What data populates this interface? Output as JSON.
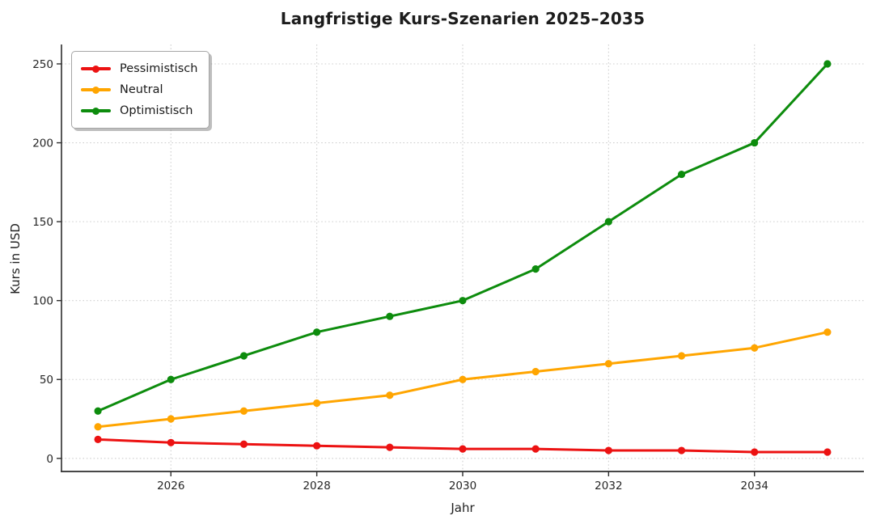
{
  "chart_data": {
    "type": "line",
    "title": "Langfristige Kurs-Szenarien 2025–2035",
    "xlabel": "Jahr",
    "ylabel": "Kurs in USD",
    "x": [
      2025,
      2026,
      2027,
      2028,
      2029,
      2030,
      2031,
      2032,
      2033,
      2034,
      2035
    ],
    "series": [
      {
        "name": "Pessimistisch",
        "color": "#ec1212",
        "values": [
          12,
          10,
          9,
          8,
          7,
          6,
          6,
          5,
          5,
          4,
          4
        ]
      },
      {
        "name": "Neutral",
        "color": "#ffa500",
        "values": [
          20,
          25,
          30,
          35,
          40,
          50,
          55,
          60,
          65,
          70,
          80
        ]
      },
      {
        "name": "Optimistisch",
        "color": "#0d8c0d",
        "values": [
          30,
          50,
          65,
          80,
          90,
          100,
          120,
          150,
          180,
          200,
          250
        ]
      }
    ],
    "xticks": [
      2026,
      2028,
      2030,
      2032,
      2034
    ],
    "yticks": [
      0,
      50,
      100,
      150,
      200,
      250
    ],
    "xlim": [
      2024.5,
      2035.5
    ],
    "ylim": [
      -8.3,
      262.3
    ],
    "grid": true,
    "grid_style": "dotted",
    "legend_position": "upper left",
    "legend_entries": [
      "Pessimistisch",
      "Neutral",
      "Optimistisch"
    ],
    "marker": "circle",
    "colors": {
      "pessimistic": "#ec1212",
      "neutral": "#ffa500",
      "optimistic": "#0d8c0d",
      "grid": "#cfcfcf",
      "spine": "#2e2e2e",
      "title_text": "#1c1c1c"
    }
  }
}
